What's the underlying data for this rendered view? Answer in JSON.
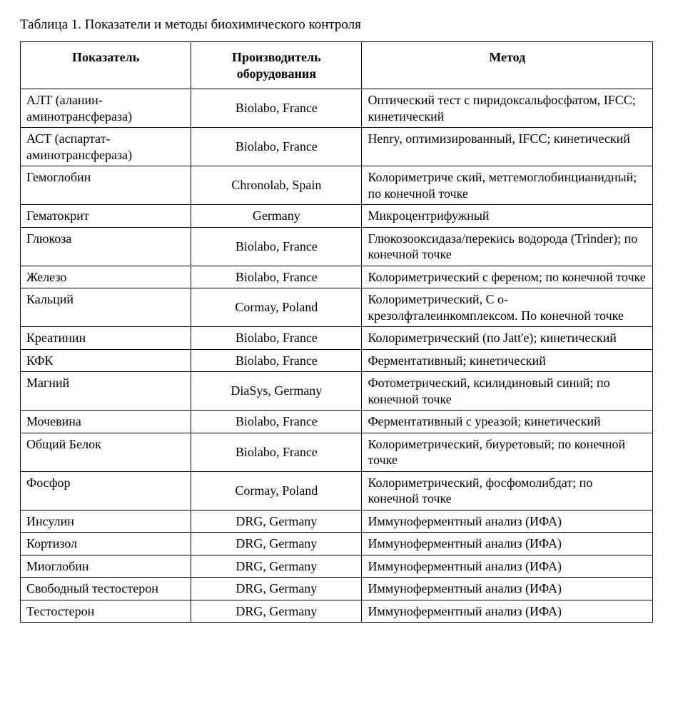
{
  "table": {
    "caption": "Таблица 1. Показатели и методы биохимического контроля",
    "columns": [
      {
        "label": "Показатель"
      },
      {
        "label": "Производитель оборудования"
      },
      {
        "label": "Метод"
      }
    ],
    "col_widths_percent": [
      27,
      27,
      46
    ],
    "border_color": "#000000",
    "background_color": "#ffffff",
    "text_color": "#000000",
    "font_family": "Times New Roman",
    "font_size_pt": 14,
    "header_font_weight": "bold",
    "rows": [
      {
        "indicator": "АЛТ (аланин-аминотрансфераза)",
        "manufacturer": "Biolabo, France",
        "method": "Оптический тест с пиридоксальфосфатом, IFCC; кинетический"
      },
      {
        "indicator": "АСТ (аспартат-аминотрансфераза)",
        "manufacturer": "Biolabo, France",
        "method": "Henry, оптимизированный, IFCC; кинетический"
      },
      {
        "indicator": "Гемоглобин",
        "manufacturer": "Chronolab, Spain",
        "method": "Колориметриче ский, метгемоглобинцианидный; по конечной точке"
      },
      {
        "indicator": "Гематокрит",
        "manufacturer": "Germany",
        "method": "Микроцентрифужный"
      },
      {
        "indicator": "Глюкоза",
        "manufacturer": "Biolabo, France",
        "method": "Глюкозооксидаза/перекись водорода (Trinder); по конечной точке"
      },
      {
        "indicator": "Железо",
        "manufacturer": "Biolabo, France",
        "method": "Колориметрический с ференом; по конечной точке"
      },
      {
        "indicator": "Кальций",
        "manufacturer": "Cormay, Poland",
        "method": "Колориметрический, С о-крезолфталеинкомплексом. По конечной точке"
      },
      {
        "indicator": "Креатинин",
        "manufacturer": "Biolabo, France",
        "method": "Колориметрический (по Jatt'e); кинетический"
      },
      {
        "indicator": "КФК",
        "manufacturer": "Biolabo, France",
        "method": "Ферментативный; кинетический"
      },
      {
        "indicator": "Магний",
        "manufacturer": "DiaSys, Germany",
        "method": "Фотометрический, ксилидиновый синий; по конечной точке"
      },
      {
        "indicator": "Мочевина",
        "manufacturer": "Biolabo, France",
        "method": "Ферментативный с уреазой; кинетический"
      },
      {
        "indicator": "Общий Белок",
        "manufacturer": "Biolabo, France",
        "method": "Колориметрический, биуретовый; по конечной точке"
      },
      {
        "indicator": "Фосфор",
        "manufacturer": "Cormay, Poland",
        "method": "Колориметрический, фосфомолибдат; по конечной точке"
      },
      {
        "indicator": "Инсулин",
        "manufacturer": "DRG, Germany",
        "method": "Иммуноферментный анализ (ИФА)"
      },
      {
        "indicator": "Кортизол",
        "manufacturer": "DRG, Germany",
        "method": "Иммуноферментный анализ (ИФА)"
      },
      {
        "indicator": "Миоглобин",
        "manufacturer": "DRG, Germany",
        "method": "Иммуноферментный анализ (ИФА)"
      },
      {
        "indicator": "Свободный тестостерон",
        "manufacturer": "DRG, Germany",
        "method": "Иммуноферментный анализ (ИФА)"
      },
      {
        "indicator": "Тестостерон",
        "manufacturer": "DRG, Germany",
        "method": "Иммуноферментный анализ (ИФА)"
      }
    ]
  }
}
